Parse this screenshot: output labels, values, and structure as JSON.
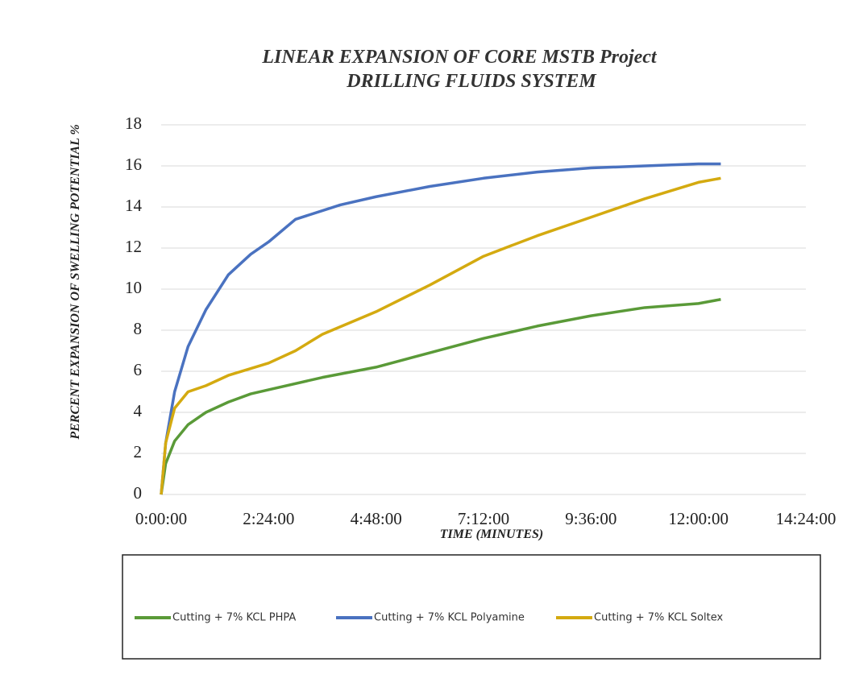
{
  "chart_data": {
    "type": "line",
    "title": "LINEAR EXPANSION OF CORE MSTB Project",
    "subtitle": "DRILLING FLUIDS SYSTEM",
    "x_label": "TIME (MINUTES)",
    "y_label": "PERCENT EXPANSION OF SWELLING POTENTIAL %",
    "xlim": [
      0,
      14.4
    ],
    "xticks": [
      {
        "value": 0,
        "label": "0:00:00"
      },
      {
        "value": 2.4,
        "label": "2:24:00"
      },
      {
        "value": 4.8,
        "label": "4:48:00"
      },
      {
        "value": 7.2,
        "label": "7:12:00"
      },
      {
        "value": 9.6,
        "label": "9:36:00"
      },
      {
        "value": 12,
        "label": "12:00:00"
      },
      {
        "value": 14.4,
        "label": "14:24:00"
      }
    ],
    "ylim": [
      0,
      18
    ],
    "yticks": [
      0,
      2,
      4,
      6,
      8,
      10,
      12,
      14,
      16,
      18
    ],
    "grid": true,
    "legend": "bottom",
    "series": [
      {
        "name": "Cutting + 7% KCL PHPA",
        "color": "#5a9a38",
        "x": [
          0,
          0.1,
          0.3,
          0.6,
          1,
          1.5,
          2,
          2.4,
          3.6,
          4.8,
          6,
          7.2,
          8.4,
          9.6,
          10.8,
          12,
          12.5
        ],
        "values": [
          0,
          1.5,
          2.6,
          3.4,
          4,
          4.5,
          4.9,
          5.1,
          5.7,
          6.2,
          6.9,
          7.6,
          8.2,
          8.7,
          9.1,
          9.3,
          9.5
        ]
      },
      {
        "name": "Cutting + 7% KCL Polyamine",
        "color": "#4a72c0",
        "x": [
          0,
          0.1,
          0.3,
          0.6,
          1,
          1.5,
          2,
          2.4,
          3,
          4,
          4.8,
          6,
          7.2,
          8.4,
          9.6,
          10.8,
          12,
          12.5
        ],
        "values": [
          0,
          2.5,
          5,
          7.2,
          9,
          10.7,
          11.7,
          12.3,
          13.4,
          14.1,
          14.5,
          15,
          15.4,
          15.7,
          15.9,
          16,
          16.1,
          16.1
        ]
      },
      {
        "name": "Cutting + 7% KCL Soltex",
        "color": "#d4aa10",
        "x": [
          0,
          0.1,
          0.3,
          0.6,
          1,
          1.5,
          2.4,
          3,
          3.6,
          4.8,
          6,
          7.2,
          8.4,
          9.6,
          10.8,
          12,
          12.5
        ],
        "values": [
          0,
          2.5,
          4.2,
          5,
          5.3,
          5.8,
          6.4,
          7,
          7.8,
          8.9,
          10.2,
          11.6,
          12.6,
          13.5,
          14.4,
          15.2,
          15.4
        ]
      }
    ]
  }
}
